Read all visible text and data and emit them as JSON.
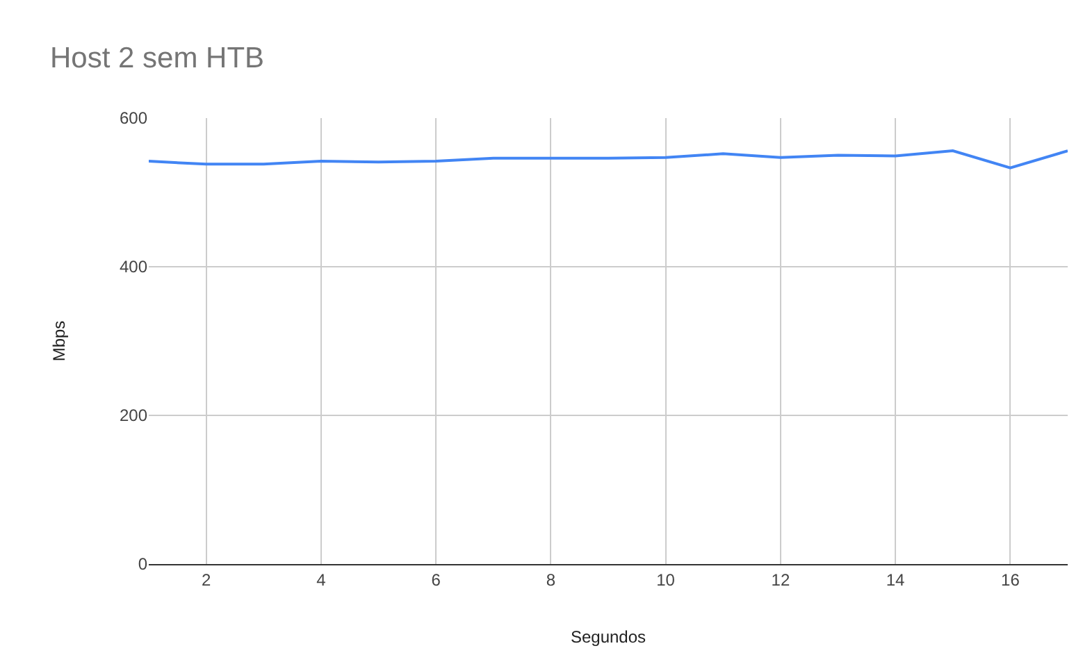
{
  "chart_data": {
    "type": "line",
    "title": "Host 2 sem HTB",
    "xlabel": "Segundos",
    "ylabel": "Mbps",
    "x": [
      1,
      2,
      3,
      4,
      5,
      6,
      7,
      8,
      9,
      10,
      11,
      12,
      13,
      14,
      15,
      16,
      17
    ],
    "series": [
      {
        "color": "#4285f4",
        "values": [
          542,
          538,
          538,
          542,
          541,
          542,
          546,
          546,
          546,
          547,
          552,
          547,
          550,
          549,
          556,
          533,
          556
        ]
      }
    ],
    "xlim": [
      1,
      17
    ],
    "xticks": [
      2,
      4,
      6,
      8,
      10,
      12,
      14,
      16
    ],
    "ylim": [
      0,
      600
    ],
    "yticks": [
      0,
      200,
      400,
      600
    ],
    "grid": true,
    "marker": "none",
    "line_style": "solid"
  }
}
